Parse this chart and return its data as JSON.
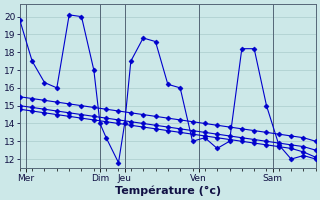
{
  "background_color": "#cce8e8",
  "grid_color": "#aacccc",
  "line_color": "#0000cc",
  "xlabel": "Température (°c)",
  "ylim": [
    11.5,
    20.7
  ],
  "yticks": [
    12,
    13,
    14,
    15,
    16,
    17,
    18,
    19,
    20
  ],
  "xlim": [
    0,
    48
  ],
  "day_labels": [
    "Mer",
    "Dim",
    "Jeu",
    "Ven",
    "Sam"
  ],
  "day_tick_x": [
    1,
    13,
    17,
    29,
    41
  ],
  "vline_x": [
    1,
    13,
    17,
    29,
    41
  ],
  "xtick_minor_step": 1,
  "main_line_x": [
    0,
    2,
    4,
    6,
    8,
    10,
    12,
    14,
    16,
    18,
    20,
    22,
    24,
    26,
    28,
    30,
    32,
    34,
    36,
    38,
    40,
    42,
    44,
    46,
    48
  ],
  "series": [
    {
      "x": [
        0,
        2,
        4,
        6,
        8,
        10,
        12,
        13,
        14,
        16,
        17,
        18,
        20,
        22,
        24,
        26,
        28,
        30,
        32,
        34,
        36,
        38,
        40,
        42,
        44,
        46,
        48
      ],
      "y": [
        19.8,
        17.5,
        16.3,
        16.0,
        20.1,
        20.0,
        17.0,
        14.0,
        13.2,
        11.8,
        14.0,
        17.5,
        18.8,
        18.6,
        16.2,
        16.0,
        13.0,
        13.2,
        12.6,
        13.0,
        18.2,
        18.2,
        15.0,
        12.8,
        12.0,
        12.2,
        12.0
      ]
    },
    {
      "x": [
        0,
        2,
        4,
        6,
        8,
        10,
        12,
        14,
        16,
        18,
        20,
        22,
        24,
        26,
        28,
        30,
        32,
        34,
        36,
        38,
        40,
        42,
        44,
        46,
        48
      ],
      "y": [
        15.5,
        15.4,
        15.3,
        15.2,
        15.1,
        15.0,
        14.9,
        14.8,
        14.7,
        14.6,
        14.5,
        14.4,
        14.3,
        14.2,
        14.1,
        14.0,
        13.9,
        13.8,
        13.7,
        13.6,
        13.5,
        13.4,
        13.3,
        13.2,
        13.0
      ]
    },
    {
      "x": [
        0,
        2,
        4,
        6,
        8,
        10,
        12,
        14,
        16,
        18,
        20,
        22,
        24,
        26,
        28,
        30,
        32,
        34,
        36,
        38,
        40,
        42,
        44,
        46,
        48
      ],
      "y": [
        15.0,
        14.9,
        14.8,
        14.7,
        14.6,
        14.5,
        14.4,
        14.3,
        14.2,
        14.1,
        14.0,
        13.9,
        13.8,
        13.7,
        13.6,
        13.5,
        13.4,
        13.3,
        13.2,
        13.1,
        13.0,
        12.9,
        12.8,
        12.7,
        12.5
      ]
    },
    {
      "x": [
        0,
        2,
        4,
        6,
        8,
        10,
        12,
        14,
        16,
        18,
        20,
        22,
        24,
        26,
        28,
        30,
        32,
        34,
        36,
        38,
        40,
        42,
        44,
        46,
        48
      ],
      "y": [
        14.8,
        14.7,
        14.6,
        14.5,
        14.4,
        14.3,
        14.2,
        14.1,
        14.0,
        13.9,
        13.8,
        13.7,
        13.6,
        13.5,
        13.4,
        13.3,
        13.2,
        13.1,
        13.0,
        12.9,
        12.8,
        12.7,
        12.6,
        12.4,
        12.1
      ]
    }
  ]
}
